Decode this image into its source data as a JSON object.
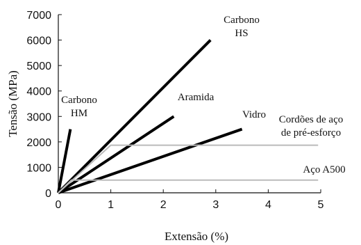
{
  "chart_data": {
    "type": "line",
    "xlabel": "Extensão (%)",
    "ylabel": "Tensão (MPa)",
    "xlim": [
      0,
      5
    ],
    "ylim": [
      0,
      7000
    ],
    "x_ticks": [
      "0",
      "1",
      "2",
      "3",
      "4",
      "5"
    ],
    "y_ticks": [
      "0",
      "1000",
      "2000",
      "3000",
      "4000",
      "5000",
      "6000",
      "7000"
    ],
    "grid": false,
    "legend": "none",
    "series": [
      {
        "labels": [
          "Carbono",
          "HM"
        ],
        "color": "#000000",
        "points": [
          [
            0,
            0
          ],
          [
            0.23,
            2500
          ]
        ]
      },
      {
        "labels": [
          "Carbono",
          "HS"
        ],
        "color": "#000000",
        "points": [
          [
            0,
            0
          ],
          [
            2.9,
            6000
          ]
        ]
      },
      {
        "labels": [
          "Aramida"
        ],
        "color": "#000000",
        "points": [
          [
            0,
            0
          ],
          [
            2.2,
            3000
          ]
        ]
      },
      {
        "labels": [
          "Vidro"
        ],
        "color": "#000000",
        "points": [
          [
            0,
            0
          ],
          [
            3.5,
            2500
          ]
        ]
      },
      {
        "labels": [
          "Cordões de aço",
          "de pré-esforço"
        ],
        "color": "#bbbbbb",
        "points": [
          [
            0,
            0
          ],
          [
            1.0,
            1870
          ],
          [
            4.95,
            1870
          ]
        ]
      },
      {
        "labels": [
          "Aço A500"
        ],
        "color": "#bbbbbb",
        "points": [
          [
            0,
            0
          ],
          [
            0.25,
            500
          ],
          [
            4.95,
            500
          ]
        ]
      }
    ]
  }
}
